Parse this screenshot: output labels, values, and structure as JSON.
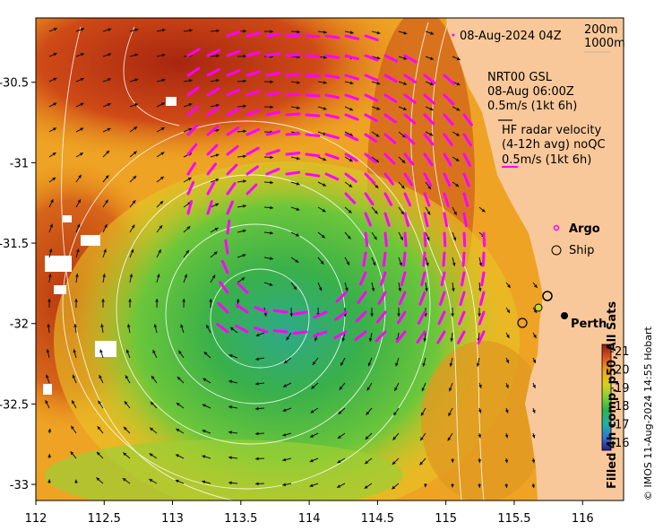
{
  "map": {
    "datetime": "08-Aug-2024 04Z",
    "depth_legend": [
      "200m",
      "1000m"
    ],
    "gsl_label": [
      "NRT00 GSL",
      "08-Aug 06:00Z",
      "0.5m/s (1kt 6h)"
    ],
    "hf_label": [
      "HF radar velocity",
      "(4-12h avg) noQC",
      "0.5m/s (1kt 6h)"
    ],
    "argo_label": "Argo",
    "ship_label": "Ship",
    "city_label": "Perth",
    "colorbar_title": "Filled 4h comp, p50, All Sats",
    "colorbar_ticks": [
      "21",
      "20",
      "19",
      "18",
      "17",
      "16"
    ],
    "colorbar_values": [
      21,
      20,
      19,
      18,
      17,
      16
    ],
    "colorbar_range": [
      15.6,
      21.4
    ],
    "credit": "© IMOS 11-Aug-2024 14:55 Hobart",
    "x_ticks": [
      "112",
      "112.5",
      "113",
      "113.5",
      "114",
      "114.5",
      "115",
      "115.5",
      "116"
    ],
    "y_ticks": [
      "-30.5",
      "-31",
      "-31.5",
      "-32",
      "-32.5",
      "-33"
    ],
    "lon_range": [
      112,
      116.3
    ],
    "lat_range": [
      -33.1,
      -30.1
    ],
    "colors": {
      "land": "#f8c89a",
      "gsl_arrows": "#ff00ff",
      "current_arrows": "#111111",
      "argo": "#ff00ff"
    }
  }
}
